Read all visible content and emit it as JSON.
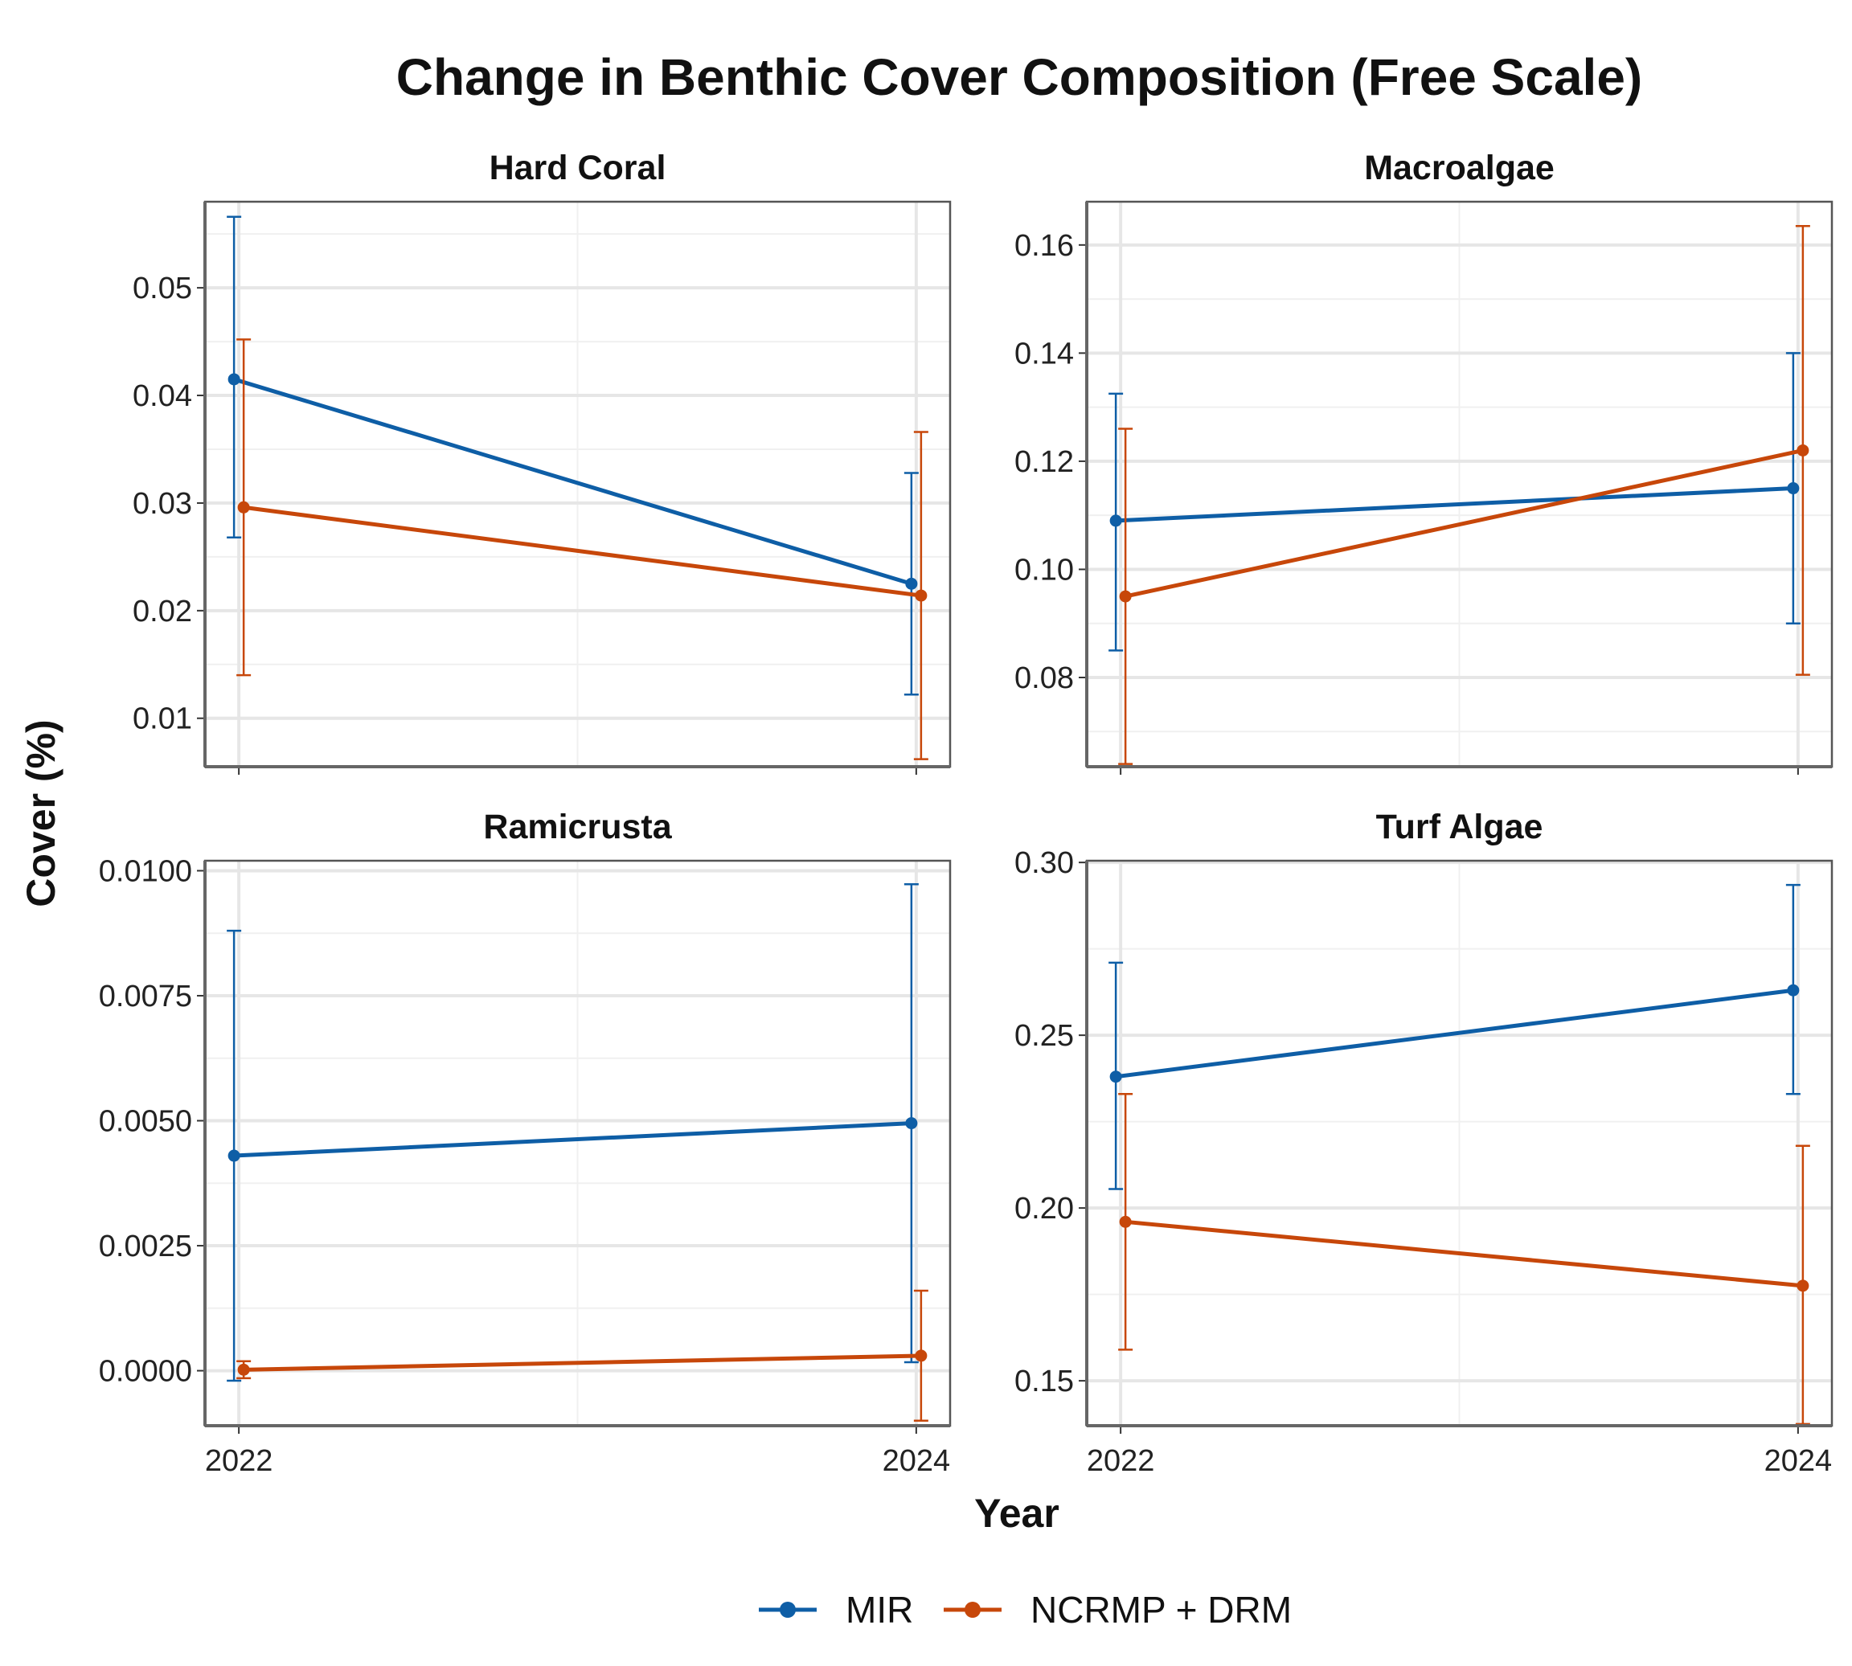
{
  "chart_data": {
    "type": "line",
    "title": "Change in Benthic Cover Composition (Free Scale)",
    "xlabel": "Year",
    "ylabel": "Cover (%)",
    "x": [
      2022,
      2024
    ],
    "x_tick_labels": [
      "2022",
      "2024"
    ],
    "grid": true,
    "legend_position": "bottom",
    "legend": [
      {
        "name": "MIR",
        "color": "#0e5ea6"
      },
      {
        "name": "NCRMP + DRM",
        "color": "#c7470a"
      }
    ],
    "panels": [
      {
        "title": "Hard Coral",
        "ylim": [
          0.0055,
          0.058
        ],
        "y_ticks": [
          0.01,
          0.02,
          0.03,
          0.04,
          0.05
        ],
        "y_tick_labels": [
          "0.01",
          "0.02",
          "0.03",
          "0.04",
          "0.05"
        ],
        "series": [
          {
            "name": "MIR",
            "values": [
              0.0415,
              0.0225
            ],
            "lower": [
              0.0268,
              0.0122
            ],
            "upper": [
              0.0566,
              0.0328
            ]
          },
          {
            "name": "NCRMP + DRM",
            "values": [
              0.0296,
              0.0214
            ],
            "lower": [
              0.014,
              0.0062
            ],
            "upper": [
              0.0452,
              0.0366
            ]
          }
        ]
      },
      {
        "title": "Macroalgae",
        "ylim": [
          0.0635,
          0.168
        ],
        "y_ticks": [
          0.08,
          0.1,
          0.12,
          0.14,
          0.16
        ],
        "y_tick_labels": [
          "0.08",
          "0.10",
          "0.12",
          "0.14",
          "0.16"
        ],
        "series": [
          {
            "name": "MIR",
            "values": [
              0.109,
              0.115
            ],
            "lower": [
              0.085,
              0.09
            ],
            "upper": [
              0.1325,
              0.14
            ]
          },
          {
            "name": "NCRMP + DRM",
            "values": [
              0.095,
              0.122
            ],
            "lower": [
              0.064,
              0.0805
            ],
            "upper": [
              0.126,
              0.1635
            ]
          }
        ]
      },
      {
        "title": "Ramicrusta",
        "ylim": [
          -0.0011,
          0.0102
        ],
        "y_ticks": [
          0.0,
          0.0025,
          0.005,
          0.0075,
          0.01
        ],
        "y_tick_labels": [
          "0.0000",
          "0.0025",
          "0.0050",
          "0.0075",
          "0.0100"
        ],
        "series": [
          {
            "name": "MIR",
            "values": [
              0.0043,
              0.00495
            ],
            "lower": [
              -0.0002,
              0.00017
            ],
            "upper": [
              0.0088,
              0.00973
            ]
          },
          {
            "name": "NCRMP + DRM",
            "values": [
              2e-05,
              0.0003
            ],
            "lower": [
              -0.00015,
              -0.001
            ],
            "upper": [
              0.00019,
              0.0016
            ]
          }
        ]
      },
      {
        "title": "Turf Algae",
        "ylim": [
          0.137,
          0.3005
        ],
        "y_ticks": [
          0.15,
          0.2,
          0.25,
          0.3
        ],
        "y_tick_labels": [
          "0.15",
          "0.20",
          "0.25",
          "0.30"
        ],
        "series": [
          {
            "name": "MIR",
            "values": [
              0.238,
              0.263
            ],
            "lower": [
              0.2055,
              0.233
            ],
            "upper": [
              0.271,
              0.2935
            ]
          },
          {
            "name": "NCRMP + DRM",
            "values": [
              0.196,
              0.1775
            ],
            "lower": [
              0.159,
              0.1375
            ],
            "upper": [
              0.233,
              0.218
            ]
          }
        ]
      }
    ]
  }
}
